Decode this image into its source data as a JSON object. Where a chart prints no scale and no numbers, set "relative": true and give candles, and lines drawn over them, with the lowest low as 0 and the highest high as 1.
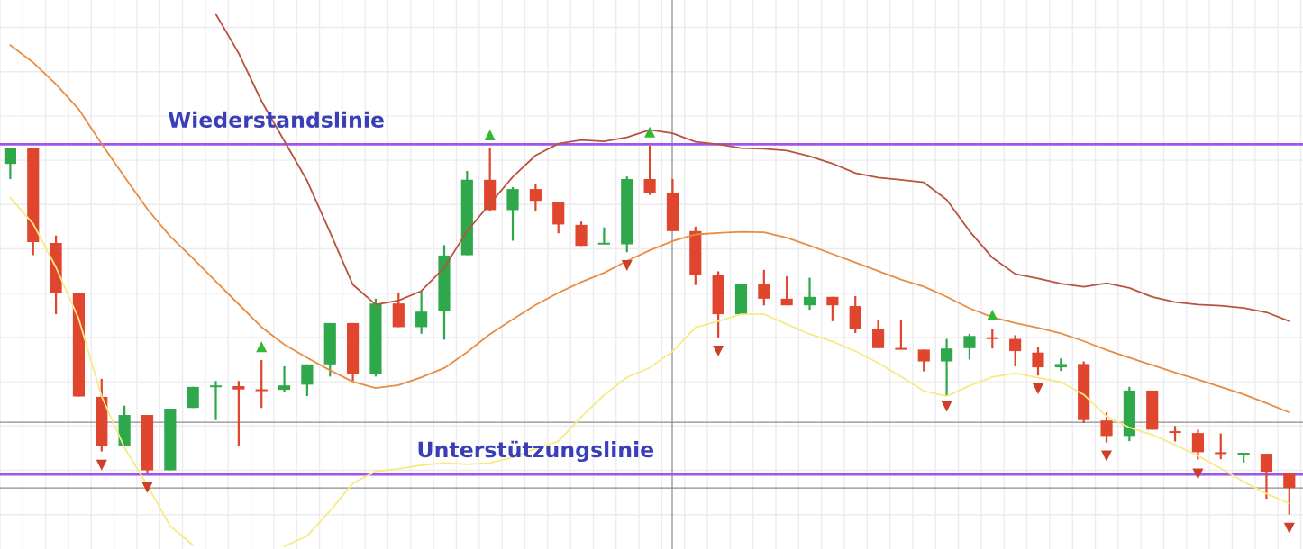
{
  "chart_data": {
    "type": "candlestick",
    "relative": true,
    "categories": [
      null,
      null,
      null,
      null,
      null,
      null,
      null,
      null,
      null,
      null,
      null,
      null,
      null,
      null,
      null,
      null,
      null,
      null,
      null,
      null,
      null,
      null,
      null,
      null,
      null,
      null,
      null,
      null,
      null,
      null,
      null,
      null,
      null,
      null,
      null,
      null,
      null,
      null,
      null,
      null,
      null,
      null,
      null,
      null,
      null,
      null,
      null,
      null,
      null,
      null,
      null,
      null,
      null,
      null,
      null,
      null,
      null
    ],
    "ohlc": [
      [
        0.95,
        0.992,
        0.909,
        0.992
      ],
      [
        0.992,
        0.992,
        0.703,
        0.738
      ],
      [
        0.736,
        0.756,
        0.543,
        0.6
      ],
      [
        0.599,
        0.599,
        0.32,
        0.32
      ],
      [
        0.319,
        0.368,
        0.171,
        0.185
      ],
      [
        0.185,
        0.295,
        0.185,
        0.27
      ],
      [
        0.27,
        0.27,
        0.111,
        0.12
      ],
      [
        0.12,
        0.287,
        0.12,
        0.287
      ],
      [
        0.289,
        0.346,
        0.289,
        0.346
      ],
      [
        0.346,
        0.362,
        0.256,
        0.349
      ],
      [
        0.348,
        0.362,
        0.185,
        0.339
      ],
      [
        0.338,
        0.419,
        0.289,
        0.336
      ],
      [
        0.338,
        0.402,
        0.333,
        0.35
      ],
      [
        0.352,
        0.407,
        0.321,
        0.407
      ],
      [
        0.407,
        0.519,
        0.374,
        0.519
      ],
      [
        0.519,
        0.519,
        0.362,
        0.38
      ],
      [
        0.38,
        0.585,
        0.374,
        0.572
      ],
      [
        0.572,
        0.602,
        0.508,
        0.508
      ],
      [
        0.508,
        0.606,
        0.49,
        0.55
      ],
      [
        0.551,
        0.73,
        0.474,
        0.702
      ],
      [
        0.703,
        0.931,
        0.703,
        0.907
      ],
      [
        0.907,
        0.992,
        0.821,
        0.825
      ],
      [
        0.825,
        0.887,
        0.742,
        0.882
      ],
      [
        0.882,
        0.897,
        0.821,
        0.85
      ],
      [
        0.848,
        0.848,
        0.762,
        0.786
      ],
      [
        0.785,
        0.794,
        0.728,
        0.728
      ],
      [
        0.733,
        0.778,
        0.733,
        0.735
      ],
      [
        0.732,
        0.916,
        0.711,
        0.909
      ],
      [
        0.909,
        1.0,
        0.866,
        0.87
      ],
      [
        0.87,
        0.909,
        0.768,
        0.768
      ],
      [
        0.768,
        0.78,
        0.622,
        0.65
      ],
      [
        0.65,
        0.659,
        0.48,
        0.543
      ],
      [
        0.543,
        0.624,
        0.543,
        0.624
      ],
      [
        0.624,
        0.663,
        0.567,
        0.585
      ],
      [
        0.585,
        0.646,
        0.567,
        0.567
      ],
      [
        0.567,
        0.642,
        0.555,
        0.59
      ],
      [
        0.59,
        0.59,
        0.524,
        0.567
      ],
      [
        0.565,
        0.592,
        0.492,
        0.502
      ],
      [
        0.502,
        0.526,
        0.451,
        0.451
      ],
      [
        0.45,
        0.526,
        0.448,
        0.448
      ],
      [
        0.447,
        0.447,
        0.388,
        0.415
      ],
      [
        0.415,
        0.476,
        0.321,
        0.45
      ],
      [
        0.451,
        0.49,
        0.42,
        0.484
      ],
      [
        0.479,
        0.504,
        0.45,
        0.477
      ],
      [
        0.476,
        0.486,
        0.402,
        0.443
      ],
      [
        0.439,
        0.453,
        0.377,
        0.399
      ],
      [
        0.399,
        0.423,
        0.389,
        0.408
      ],
      [
        0.408,
        0.415,
        0.248,
        0.256
      ],
      [
        0.255,
        0.277,
        0.195,
        0.213
      ],
      [
        0.213,
        0.346,
        0.199,
        0.336
      ],
      [
        0.336,
        0.336,
        0.23,
        0.23
      ],
      [
        0.225,
        0.24,
        0.198,
        0.222
      ],
      [
        0.221,
        0.23,
        0.149,
        0.169
      ],
      [
        0.168,
        0.22,
        0.15,
        0.165
      ],
      [
        0.164,
        0.166,
        0.141,
        0.166
      ],
      [
        0.165,
        0.165,
        0.043,
        0.116
      ],
      [
        0.114,
        0.114,
        0.0,
        0.072
      ]
    ],
    "colors": [
      "#2ea84a",
      "#e0462e",
      "#e0462e",
      "#e0462e",
      "#e0462e",
      "#2ea84a",
      "#e0462e",
      "#2ea84a",
      "#2ea84a",
      "#2ea84a",
      "#e0462e",
      "#e0462e",
      "#2ea84a",
      "#2ea84a",
      "#2ea84a",
      "#e0462e",
      "#2ea84a",
      "#e0462e",
      "#2ea84a",
      "#2ea84a",
      "#2ea84a",
      "#e0462e",
      "#2ea84a",
      "#e0462e",
      "#e0462e",
      "#e0462e",
      "#2ea84a",
      "#2ea84a",
      "#e0462e",
      "#e0462e",
      "#e0462e",
      "#e0462e",
      "#2ea84a",
      "#e0462e",
      "#e0462e",
      "#2ea84a",
      "#e0462e",
      "#e0462e",
      "#e0462e",
      "#e0462e",
      "#e0462e",
      "#2ea84a",
      "#2ea84a",
      "#e0462e",
      "#e0462e",
      "#e0462e",
      "#2ea84a",
      "#e0462e",
      "#e0462e",
      "#2ea84a",
      "#e0462e",
      "#e0462e",
      "#e0462e",
      "#e0462e",
      "#2ea84a",
      "#e0462e",
      "#e0462e"
    ],
    "series": [
      {
        "type": "line",
        "color": "#b9533f",
        "values": [
          null,
          null,
          null,
          null,
          null,
          null,
          null,
          null,
          null,
          1.356,
          1.25,
          1.12,
          1.012,
          0.904,
          0.765,
          0.623,
          0.569,
          0.58,
          0.606,
          0.669,
          0.768,
          0.842,
          0.915,
          0.973,
          1.005,
          1.015,
          1.011,
          1.022,
          1.042,
          1.033,
          1.01,
          1.003,
          0.993,
          0.991,
          0.986,
          0.971,
          0.951,
          0.925,
          0.913,
          0.907,
          0.9,
          0.853,
          0.768,
          0.696,
          0.652,
          0.64,
          0.626,
          0.617,
          0.627,
          0.614,
          0.59,
          0.576,
          0.569,
          0.566,
          0.56,
          0.548,
          0.524
        ]
      },
      {
        "type": "line",
        "color": "#e98c42",
        "values": [
          1.272,
          1.225,
          1.166,
          1.098,
          1.004,
          0.915,
          0.828,
          0.754,
          0.694,
          0.632,
          0.57,
          0.508,
          0.461,
          0.425,
          0.391,
          0.36,
          0.343,
          0.351,
          0.372,
          0.397,
          0.44,
          0.489,
          0.529,
          0.568,
          0.601,
          0.63,
          0.655,
          0.687,
          0.716,
          0.741,
          0.759,
          0.763,
          0.766,
          0.765,
          0.75,
          0.729,
          0.706,
          0.683,
          0.66,
          0.637,
          0.618,
          0.59,
          0.559,
          0.535,
          0.519,
          0.506,
          0.491,
          0.47,
          0.446,
          0.425,
          0.405,
          0.385,
          0.366,
          0.346,
          0.326,
          0.302,
          0.277
        ]
      },
      {
        "type": "line",
        "color": "#f7ea84",
        "values": [
          0.859,
          0.788,
          0.67,
          0.53,
          0.32,
          0.181,
          0.079,
          -0.031,
          -0.083,
          null,
          null,
          null,
          -0.086,
          -0.058,
          0.01,
          0.085,
          0.117,
          0.124,
          0.134,
          0.14,
          0.136,
          0.14,
          0.155,
          0.178,
          0.199,
          0.265,
          0.324,
          0.372,
          0.398,
          0.442,
          0.507,
          0.524,
          0.543,
          0.543,
          0.516,
          0.489,
          0.469,
          0.443,
          0.411,
          0.374,
          0.335,
          0.321,
          0.349,
          0.373,
          0.383,
          0.371,
          0.359,
          0.325,
          0.266,
          0.236,
          0.216,
          0.189,
          0.159,
          0.125,
          0.089,
          0.057,
          0.03
        ]
      },
      {
        "type": "scatter",
        "marker": "triangle",
        "color": "#34b834",
        "values": [
          null,
          null,
          null,
          null,
          null,
          null,
          null,
          null,
          null,
          null,
          null,
          0.455,
          null,
          null,
          null,
          null,
          null,
          null,
          null,
          null,
          null,
          null,
          null,
          null,
          null,
          null,
          null,
          null,
          null,
          null,
          null,
          null,
          null,
          null,
          null,
          null,
          null,
          null,
          null,
          null,
          null,
          null,
          null,
          0.541,
          null,
          null,
          null,
          null,
          null,
          null,
          null,
          null,
          null,
          null,
          null,
          null,
          null
        ]
      },
      {
        "type": "scatter",
        "marker": "triangle",
        "color": "#cc402a",
        "values": [
          null,
          null,
          null,
          null,
          0.134,
          null,
          0.073,
          null,
          null,
          null,
          null,
          null,
          null,
          null,
          null,
          null,
          null,
          null,
          null,
          null,
          null,
          null,
          null,
          null,
          null,
          null,
          null,
          0.675,
          null,
          null,
          null,
          0.443,
          null,
          null,
          null,
          null,
          null,
          null,
          null,
          null,
          null,
          0.293,
          null,
          null,
          null,
          0.341,
          null,
          null,
          0.159,
          null,
          null,
          null,
          0.11,
          null,
          null,
          null,
          null
        ]
      }
    ],
    "ref_lines": [
      {
        "axis": "y",
        "value": 1.003,
        "label": "Wiederstandslinie",
        "color": "#a055ee"
      },
      {
        "axis": "y",
        "value": 0.109,
        "label": "Unterstützungslinie",
        "color": "#a055ee"
      },
      {
        "axis": "y",
        "value": 0.25,
        "color": "#8c8c8c"
      },
      {
        "axis": "y",
        "value": 0.072,
        "color": "#8c8c8c"
      }
    ],
    "grid": true
  }
}
